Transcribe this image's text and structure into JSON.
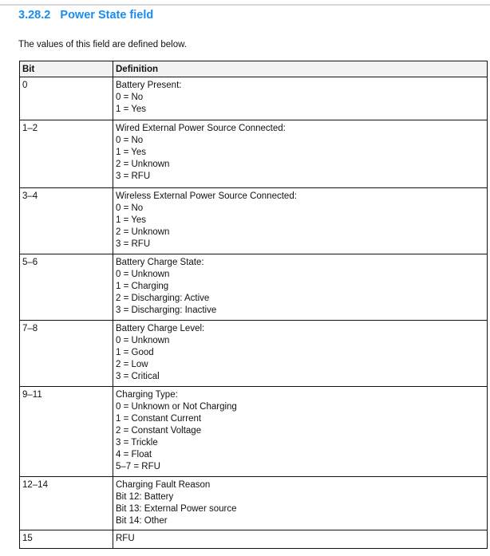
{
  "heading": "3.28.2   Power State field",
  "intro": "The values of this field are defined below.",
  "table": {
    "headers": [
      "Bit",
      "Definition"
    ],
    "rows": [
      {
        "bit": "0",
        "lines": [
          "Battery Present:",
          "0 = No",
          "1 = Yes"
        ]
      },
      {
        "bit": "1–2",
        "lines": [
          "Wired External Power Source Connected:",
          "0 = No",
          "1 = Yes",
          "2 = Unknown",
          "3 = RFU"
        ]
      },
      {
        "bit": "3–4",
        "lines": [
          "Wireless External Power Source Connected:",
          "0 = No",
          "1 = Yes",
          "2 = Unknown",
          "3 = RFU"
        ]
      },
      {
        "bit": "5–6",
        "lines": [
          "Battery Charge State:",
          "0 = Unknown",
          "1 = Charging",
          "2 = Discharging: Active",
          "3 = Discharging: Inactive"
        ]
      },
      {
        "bit": "7–8",
        "lines": [
          "Battery Charge Level:",
          "0 = Unknown",
          "1 = Good",
          "2 = Low",
          "3 = Critical"
        ]
      },
      {
        "bit": "9–11",
        "lines": [
          "Charging Type:",
          "0 = Unknown or Not Charging",
          "1 = Constant Current",
          "2 = Constant Voltage",
          "3 = Trickle",
          "4 = Float",
          "5–7 = RFU"
        ]
      },
      {
        "bit": "12–14",
        "lines": [
          "Charging Fault Reason",
          "Bit 12: Battery",
          "Bit 13: External Power source",
          "Bit 14: Other"
        ]
      },
      {
        "bit": "15",
        "lines": [
          "RFU"
        ]
      }
    ]
  }
}
